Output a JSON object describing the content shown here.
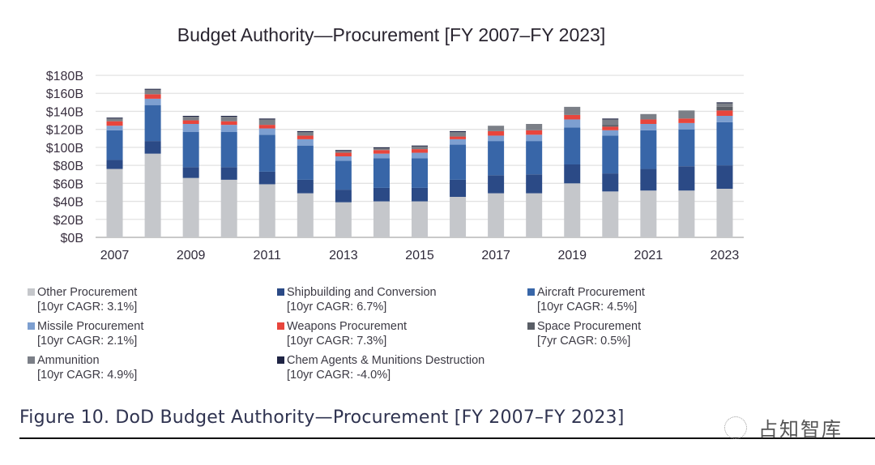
{
  "chart_data": {
    "type": "bar",
    "stacked": true,
    "title": "Budget Authority—Procurement [FY 2007–FY 2023]",
    "xlabel": "",
    "ylabel": "",
    "ylim": [
      0,
      180
    ],
    "yticks": [
      0,
      20,
      40,
      60,
      80,
      100,
      120,
      140,
      160,
      180
    ],
    "ytick_labels": [
      "$0B",
      "$20B",
      "$40B",
      "$60B",
      "$80B",
      "$100B",
      "$120B",
      "$140B",
      "$160B",
      "$180B"
    ],
    "grid": true,
    "categories": [
      "2007",
      "2008",
      "2009",
      "2010",
      "2011",
      "2012",
      "2013",
      "2014",
      "2015",
      "2016",
      "2017",
      "2018",
      "2019",
      "2020",
      "2021",
      "2022",
      "2023"
    ],
    "xtick_labels": [
      "2007",
      "",
      "2009",
      "",
      "2011",
      "",
      "2013",
      "",
      "2015",
      "",
      "2017",
      "",
      "2019",
      "",
      "2021",
      "",
      "2023"
    ],
    "legend_position": "bottom",
    "series": [
      {
        "name": "Other Procurement",
        "cagr": "[10yr CAGR: 3.1%]",
        "color": "#c5c7cb",
        "values": [
          76,
          93,
          66,
          64,
          59,
          49,
          39,
          40,
          40,
          45,
          49,
          49,
          60,
          51,
          52,
          52,
          54
        ]
      },
      {
        "name": "Shipbuilding and Conversion",
        "cagr": "[10yr CAGR: 6.7%]",
        "color": "#2b4a86",
        "values": [
          10,
          14,
          12,
          14,
          14,
          15,
          14,
          15,
          15,
          19,
          20,
          21,
          21,
          20,
          24,
          27,
          26
        ]
      },
      {
        "name": "Aircraft Procurement",
        "cagr": "[10yr CAGR: 4.5%]",
        "color": "#3866a8",
        "values": [
          33,
          40,
          39,
          39,
          41,
          38,
          32,
          33,
          33,
          39,
          38,
          37,
          41,
          42,
          43,
          41,
          48
        ]
      },
      {
        "name": "Missile Procurement",
        "cagr": "[10yr CAGR: 2.1%]",
        "color": "#7d9fd0",
        "values": [
          5,
          7,
          9,
          8,
          7,
          7,
          5,
          5,
          6,
          6,
          6,
          7,
          9,
          6,
          7,
          7,
          7
        ]
      },
      {
        "name": "Weapons Procurement",
        "cagr": "[10yr CAGR: 7.3%]",
        "color": "#e8453c",
        "values": [
          5,
          5,
          4,
          4,
          4,
          4,
          4,
          4,
          4,
          3,
          5,
          5,
          5,
          4,
          5,
          5,
          6
        ]
      },
      {
        "name": "Space Procurement",
        "cagr": "[7yr CAGR: 0.5%]",
        "color": "#5a5e66",
        "values": [
          0,
          0,
          0,
          0,
          0,
          0,
          0,
          0,
          0,
          0,
          0,
          0,
          0,
          2,
          0,
          0,
          4
        ]
      },
      {
        "name": "Ammunition",
        "cagr": "[10yr CAGR: 4.9%]",
        "color": "#7b7f87",
        "values": [
          3,
          5,
          4,
          5,
          6,
          4,
          2,
          2,
          3,
          5,
          6,
          7,
          9,
          6,
          6,
          9,
          4
        ]
      },
      {
        "name": "Chem Agents & Munitions Destruction",
        "cagr": "[10yr CAGR: -4.0%]",
        "color": "#1f2444",
        "values": [
          1,
          1,
          1,
          1,
          1,
          1,
          1,
          1,
          1,
          1,
          0,
          0,
          0,
          1,
          0,
          0,
          1
        ]
      }
    ],
    "legend_order": [
      0,
      1,
      2,
      3,
      4,
      5,
      6,
      7
    ]
  },
  "caption": "Figure 10.  DoD Budget Authority—Procurement [FY 2007–FY 2023]",
  "watermark": "占知智库"
}
